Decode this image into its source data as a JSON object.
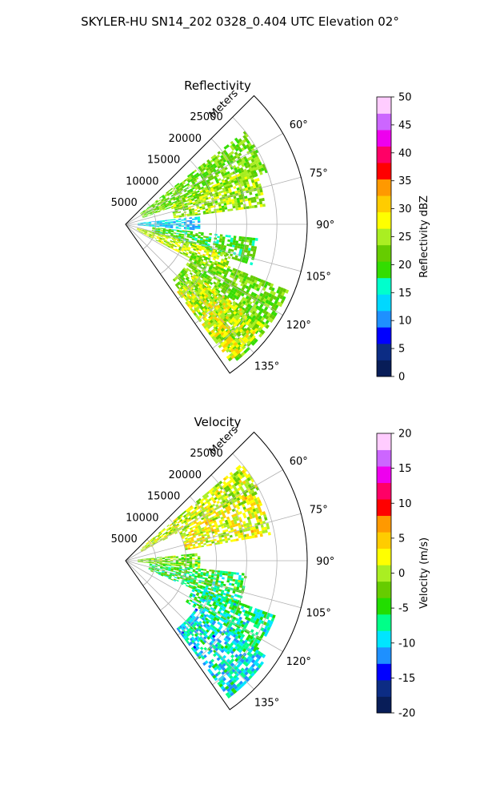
{
  "figure_title": "SKYLER-HU  SN14_202  0328_0.404 UTC Elevation 02°",
  "colors": {
    "grid": "#b0b0b0",
    "frame": "#000000",
    "background": "#ffffff"
  },
  "chart_data": [
    {
      "type": "heatmap",
      "projection": "polar-sector",
      "title": "Reflectivity",
      "radial_label": "Meters",
      "radial_range": [
        0,
        30000
      ],
      "radial_ticks": [
        "5000",
        "10000",
        "15000",
        "20000",
        "25000"
      ],
      "azimuth_range_deg": [
        45,
        145
      ],
      "azimuth_ticks": [
        "60°",
        "75°",
        "90°",
        "105°",
        "120°",
        "135°"
      ],
      "grid": true,
      "colorbar": {
        "label": "Reflectivity dBZ",
        "range": [
          0,
          50
        ],
        "ticks": [
          "0",
          "5",
          "10",
          "15",
          "20",
          "25",
          "30",
          "35",
          "40",
          "45",
          "50"
        ],
        "stops": [
          "#081d58",
          "#0c2c84",
          "#0000ff",
          "#1e90ff",
          "#00d8ff",
          "#00ffcc",
          "#33dd00",
          "#66cc00",
          "#aaee22",
          "#ffff00",
          "#ffcc00",
          "#ff9900",
          "#ff0000",
          "#ff0066",
          "#ee00ee",
          "#cc66ff",
          "#ffccff"
        ]
      },
      "echo_regions": [
        {
          "az": [
            52,
            70
          ],
          "r": [
            3000,
            25000
          ],
          "value": 22
        },
        {
          "az": [
            66,
            82
          ],
          "r": [
            8000,
            23000
          ],
          "value": 24
        },
        {
          "az": [
            84,
            94
          ],
          "r": [
            2000,
            12000
          ],
          "value": 13
        },
        {
          "az": [
            96,
            108
          ],
          "r": [
            4000,
            22000
          ],
          "value": 20
        },
        {
          "az": [
            106,
            118
          ],
          "r": [
            2000,
            18000
          ],
          "value": 26
        },
        {
          "az": [
            112,
            140
          ],
          "r": [
            12000,
            29000
          ],
          "value": 22
        },
        {
          "az": [
            126,
            142
          ],
          "r": [
            14000,
            28000
          ],
          "value": 27
        }
      ]
    },
    {
      "type": "heatmap",
      "projection": "polar-sector",
      "title": "Velocity",
      "radial_label": "Meters",
      "radial_range": [
        0,
        30000
      ],
      "radial_ticks": [
        "5000",
        "10000",
        "15000",
        "20000",
        "25000"
      ],
      "azimuth_range_deg": [
        45,
        145
      ],
      "azimuth_ticks": [
        "60°",
        "75°",
        "90°",
        "105°",
        "120°",
        "135°"
      ],
      "grid": true,
      "colorbar": {
        "label": "Velocity (m/s)",
        "range": [
          -20,
          20
        ],
        "ticks": [
          "-20",
          "-15",
          "-10",
          "-5",
          "0",
          "5",
          "10",
          "15",
          "20"
        ],
        "stops": [
          "#081d58",
          "#0c2c84",
          "#0000ff",
          "#1e90ff",
          "#00e5ff",
          "#00ff88",
          "#22dd00",
          "#66cc00",
          "#aaee22",
          "#ffff00",
          "#ffcc00",
          "#ff9900",
          "#ff0000",
          "#ff0066",
          "#ee00ee",
          "#cc66ff",
          "#ffccff"
        ]
      },
      "echo_regions": [
        {
          "az": [
            50,
            62
          ],
          "r": [
            3000,
            25000
          ],
          "value": 1
        },
        {
          "az": [
            62,
            80
          ],
          "r": [
            10000,
            24000
          ],
          "value": 2
        },
        {
          "az": [
            84,
            96
          ],
          "r": [
            2000,
            12000
          ],
          "value": -2
        },
        {
          "az": [
            96,
            112
          ],
          "r": [
            4000,
            20000
          ],
          "value": -5
        },
        {
          "az": [
            110,
            124
          ],
          "r": [
            12000,
            26000
          ],
          "value": -7
        },
        {
          "az": [
            124,
            142
          ],
          "r": [
            14000,
            28000
          ],
          "value": -9
        }
      ]
    }
  ]
}
